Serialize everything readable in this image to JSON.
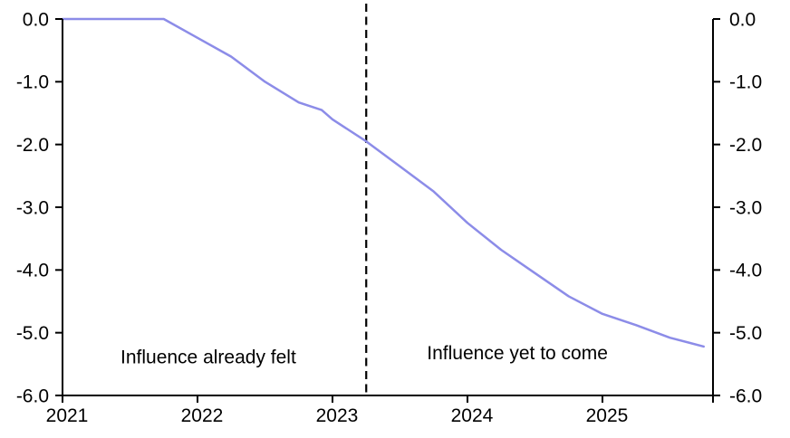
{
  "chart_data": {
    "type": "line",
    "title": "",
    "xlabel": "",
    "ylabel": "",
    "xlim": [
      2021,
      2025.819
    ],
    "ylim": [
      -6.0,
      0.0
    ],
    "x_ticks": [
      2021,
      2022,
      2023,
      2024,
      2025
    ],
    "y_ticks": [
      0.0,
      -1.0,
      -2.0,
      -3.0,
      -4.0,
      -5.0,
      -6.0
    ],
    "y_tick_labels": [
      "0.0",
      "-1.0",
      "-2.0",
      "-3.0",
      "-4.0",
      "-5.0",
      "-6.0"
    ],
    "grid": false,
    "legend": "none",
    "mirrored_y_axis": true,
    "axis_color": "#000000",
    "dashed_vline_x": 2023.25,
    "dashed_vline_color": "#000000",
    "series": [
      {
        "name": "cumulative-influence",
        "color": "#8c8ce8",
        "points": [
          [
            2021.0,
            0.0
          ],
          [
            2021.25,
            0.0
          ],
          [
            2021.5,
            0.0
          ],
          [
            2021.75,
            0.0
          ],
          [
            2022.0,
            -0.3
          ],
          [
            2022.25,
            -0.6
          ],
          [
            2022.5,
            -1.0
          ],
          [
            2022.75,
            -1.33
          ],
          [
            2022.92,
            -1.45
          ],
          [
            2023.0,
            -1.6
          ],
          [
            2023.25,
            -1.95
          ],
          [
            2023.5,
            -2.35
          ],
          [
            2023.75,
            -2.75
          ],
          [
            2024.0,
            -3.25
          ],
          [
            2024.25,
            -3.68
          ],
          [
            2024.5,
            -4.05
          ],
          [
            2024.75,
            -4.42
          ],
          [
            2025.0,
            -4.7
          ],
          [
            2025.25,
            -4.88
          ],
          [
            2025.5,
            -5.08
          ],
          [
            2025.75,
            -5.22
          ]
        ]
      }
    ],
    "annotations": [
      {
        "text": "Influence already felt",
        "x": 2022.08,
        "y": -5.38
      },
      {
        "text": "Influence yet to come",
        "x": 2024.37,
        "y": -5.32
      }
    ]
  }
}
